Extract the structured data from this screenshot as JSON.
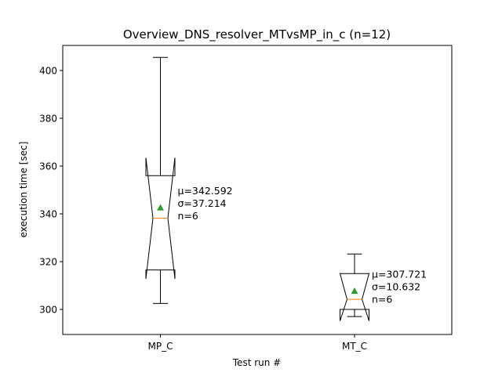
{
  "chart_data": {
    "type": "box",
    "title": "Overview_DNS_resolver_MTvsMP_in_c (n=12)",
    "xlabel": "Test run #",
    "ylabel": "execution time [sec]",
    "ylim": [
      289.5,
      410.5
    ],
    "yticks": [
      300,
      320,
      340,
      360,
      380,
      400
    ],
    "grid": false,
    "notched": true,
    "mean_marker": "triangle",
    "categories": [
      "MP_C",
      "MT_C"
    ],
    "boxes": [
      {
        "name": "MP_C",
        "whisker_low": 302.5,
        "q1": 316.5,
        "median": 338.2,
        "q3": 356.0,
        "whisker_high": 405.5,
        "notch_low": 312.8,
        "notch_high": 363.5,
        "mean": 342.6,
        "annotation": [
          "μ=342.592",
          "σ=37.214",
          "n=6"
        ]
      },
      {
        "name": "MT_C",
        "whisker_low": 297.0,
        "q1": 300.0,
        "median": 304.2,
        "q3": 315.0,
        "whisker_high": 323.2,
        "notch_low": 295.2,
        "notch_high": 315.0,
        "mean": 307.7,
        "annotation": [
          "μ=307.721",
          "σ=10.632",
          "n=6"
        ]
      }
    ],
    "colors": {
      "box": "#000000",
      "median": "#ff7f0e",
      "mean": "#2ca02c"
    }
  }
}
